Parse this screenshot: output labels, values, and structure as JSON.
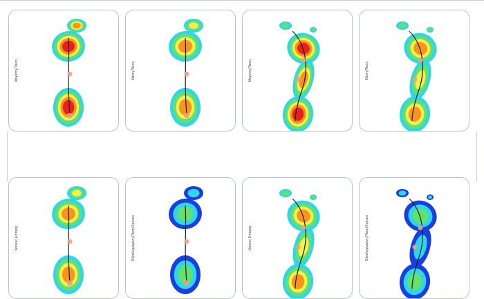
{
  "colors": {
    "panel_border": "#b9c0d8",
    "heat_blue": "#1a3fe0",
    "heat_cyan": "#2fd6e8",
    "heat_green": "#64e070",
    "heat_yellow": "#f4f04a",
    "heat_orange": "#f7931e",
    "heat_red": "#e8201e",
    "cop_line": "#1a1a1a",
    "cop_marker": "#f0a080",
    "cop_marker_static": "#e040c0"
  },
  "top_row": [
    {
      "label": "Μέγιστη Πίεση",
      "foot": "static",
      "scale": "warm"
    },
    {
      "label": "Μέση Πίεση",
      "foot": "static",
      "scale": "medium"
    },
    {
      "label": "Μέγιστη Πίεση",
      "foot": "dynamic",
      "scale": "warm"
    },
    {
      "label": "Μέση Πίεση",
      "foot": "dynamic",
      "scale": "medium"
    }
  ],
  "bottom_row": [
    {
      "label": "Χρόνος Επαφής",
      "foot": "static",
      "scale": "medium"
    },
    {
      "label": "Ολοκληρωμένη Πίεση/Χρόνου",
      "foot": "static",
      "scale": "cool"
    },
    {
      "label": "Χρόνος Επαφής",
      "foot": "dynamic",
      "scale": "medium"
    },
    {
      "label": "Ολοκληρωμένη Πίεση/Χρόνου",
      "foot": "dynamic",
      "scale": "cool"
    }
  ]
}
